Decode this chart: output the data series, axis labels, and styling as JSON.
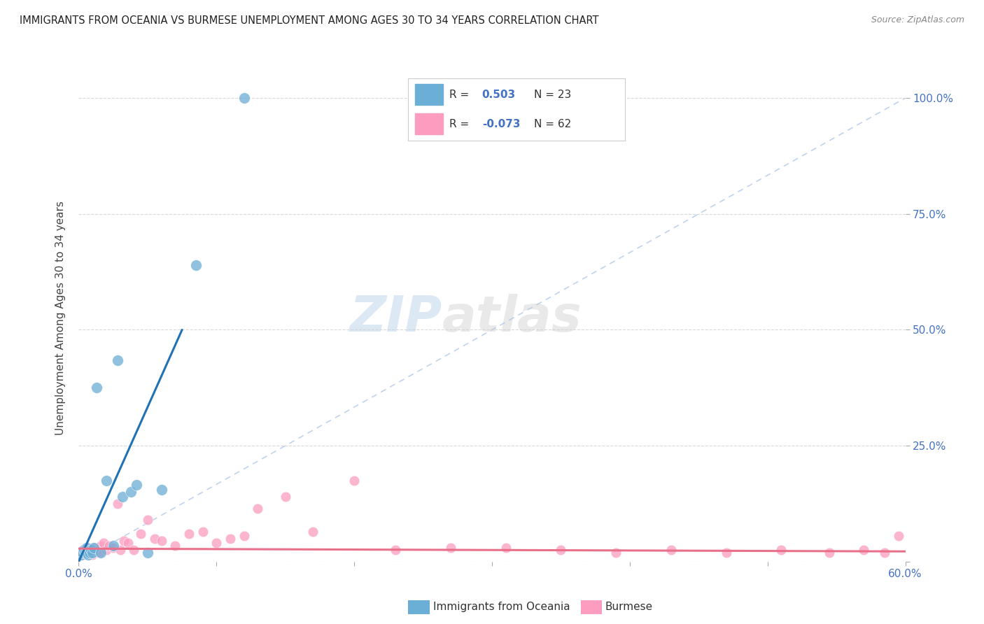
{
  "title": "IMMIGRANTS FROM OCEANIA VS BURMESE UNEMPLOYMENT AMONG AGES 30 TO 34 YEARS CORRELATION CHART",
  "source": "Source: ZipAtlas.com",
  "ylabel": "Unemployment Among Ages 30 to 34 years",
  "xlim": [
    0.0,
    0.6
  ],
  "ylim": [
    0.0,
    1.05
  ],
  "xticks": [
    0.0,
    0.1,
    0.2,
    0.3,
    0.4,
    0.5,
    0.6
  ],
  "xticklabels": [
    "0.0%",
    "",
    "",
    "",
    "",
    "",
    "60.0%"
  ],
  "yticks": [
    0.0,
    0.25,
    0.5,
    0.75,
    1.0
  ],
  "ytick_labels_right": [
    "",
    "25.0%",
    "50.0%",
    "75.0%",
    "100.0%"
  ],
  "blue_color": "#6baed6",
  "pink_color": "#fc9cbf",
  "blue_line_color": "#2171b5",
  "pink_line_color": "#e8708a",
  "ref_line_color": "#b0c8e8",
  "watermark_zip": "ZIP",
  "watermark_atlas": "atlas",
  "blue_scatter_x": [
    0.002,
    0.003,
    0.004,
    0.005,
    0.006,
    0.006,
    0.007,
    0.008,
    0.009,
    0.01,
    0.011,
    0.013,
    0.016,
    0.02,
    0.025,
    0.028,
    0.032,
    0.038,
    0.042,
    0.05,
    0.06,
    0.085,
    0.12
  ],
  "blue_scatter_y": [
    0.015,
    0.02,
    0.025,
    0.02,
    0.03,
    0.02,
    0.015,
    0.02,
    0.025,
    0.02,
    0.03,
    0.375,
    0.02,
    0.175,
    0.035,
    0.435,
    0.14,
    0.15,
    0.165,
    0.02,
    0.155,
    0.64,
    1.0
  ],
  "pink_scatter_x": [
    0.001,
    0.002,
    0.003,
    0.004,
    0.005,
    0.005,
    0.006,
    0.007,
    0.008,
    0.009,
    0.01,
    0.011,
    0.012,
    0.013,
    0.014,
    0.015,
    0.016,
    0.018,
    0.02,
    0.022,
    0.025,
    0.028,
    0.03,
    0.033,
    0.036,
    0.04,
    0.045,
    0.05,
    0.055,
    0.06,
    0.07,
    0.08,
    0.09,
    0.1,
    0.11,
    0.12,
    0.13,
    0.15,
    0.17,
    0.2,
    0.23,
    0.27,
    0.31,
    0.35,
    0.39,
    0.43,
    0.47,
    0.51,
    0.545,
    0.57,
    0.585,
    0.595
  ],
  "pink_scatter_y": [
    0.015,
    0.02,
    0.025,
    0.015,
    0.03,
    0.02,
    0.025,
    0.03,
    0.02,
    0.025,
    0.015,
    0.03,
    0.02,
    0.025,
    0.03,
    0.02,
    0.035,
    0.04,
    0.025,
    0.035,
    0.03,
    0.125,
    0.025,
    0.045,
    0.04,
    0.025,
    0.06,
    0.09,
    0.05,
    0.045,
    0.035,
    0.06,
    0.065,
    0.04,
    0.05,
    0.055,
    0.115,
    0.14,
    0.065,
    0.175,
    0.025,
    0.03,
    0.03,
    0.025,
    0.02,
    0.025,
    0.02,
    0.025,
    0.02,
    0.025,
    0.02,
    0.055
  ],
  "blue_trend_x0": 0.0,
  "blue_trend_x1": 0.075,
  "blue_trend_y0": 0.0,
  "blue_trend_y1": 0.5,
  "pink_trend_x0": 0.0,
  "pink_trend_x1": 0.6,
  "pink_trend_y0": 0.028,
  "pink_trend_y1": 0.022,
  "ref_line_x0": 0.0,
  "ref_line_x1": 0.6,
  "ref_line_y0": 0.0,
  "ref_line_y1": 1.0
}
